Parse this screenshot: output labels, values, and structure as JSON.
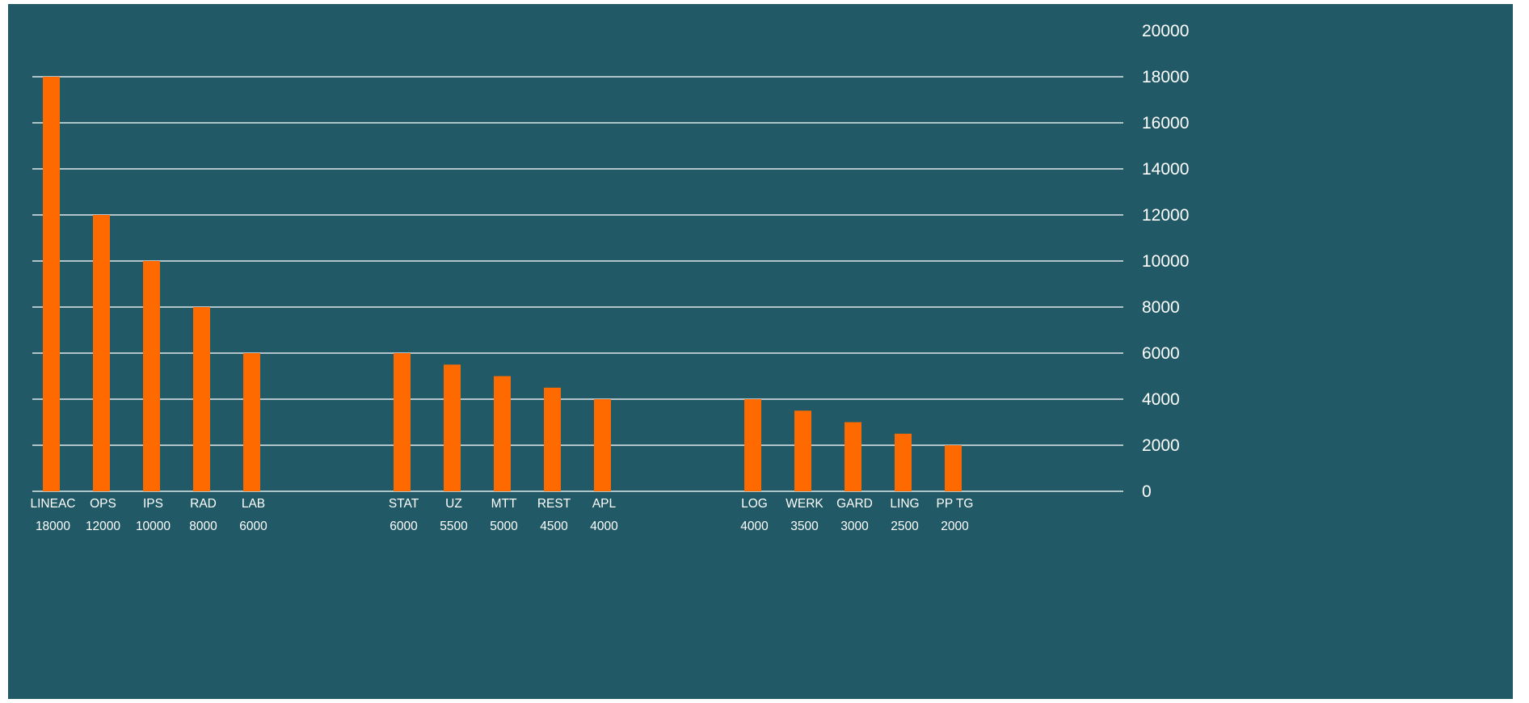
{
  "colors": {
    "background": "#215a66",
    "bar": "#ff6a00",
    "gridline": "#dfe7ea",
    "text": "#ffffff"
  },
  "chart_data": {
    "type": "bar",
    "title": "",
    "xlabel": "",
    "ylabel": "",
    "ylim": [
      0,
      20000
    ],
    "y_ticks": [
      "20000",
      "18000",
      "16000",
      "14000",
      "12000",
      "10000",
      "8000",
      "6000",
      "4000",
      "2000",
      "0"
    ],
    "y_axis_position": "right",
    "grid": true,
    "categories": [
      "LINEAC",
      "OPS",
      "IPS",
      "RAD",
      "LAB",
      "STAT",
      "UZ",
      "MTT",
      "REST",
      "APL",
      "LOG",
      "WERK",
      "GARD",
      "LING",
      "PP TG"
    ],
    "values": [
      18000,
      12000,
      10000,
      8000,
      6000,
      6000,
      5500,
      5000,
      4500,
      4000,
      4000,
      3500,
      3000,
      2500,
      2000
    ],
    "value_labels": [
      "18000",
      "12000",
      "10000",
      "8000",
      "6000",
      "6000",
      "5500",
      "5000",
      "4500",
      "4000",
      "4000",
      "3500",
      "3000",
      "2500",
      "2000"
    ],
    "groups": [
      5,
      5,
      5
    ]
  }
}
